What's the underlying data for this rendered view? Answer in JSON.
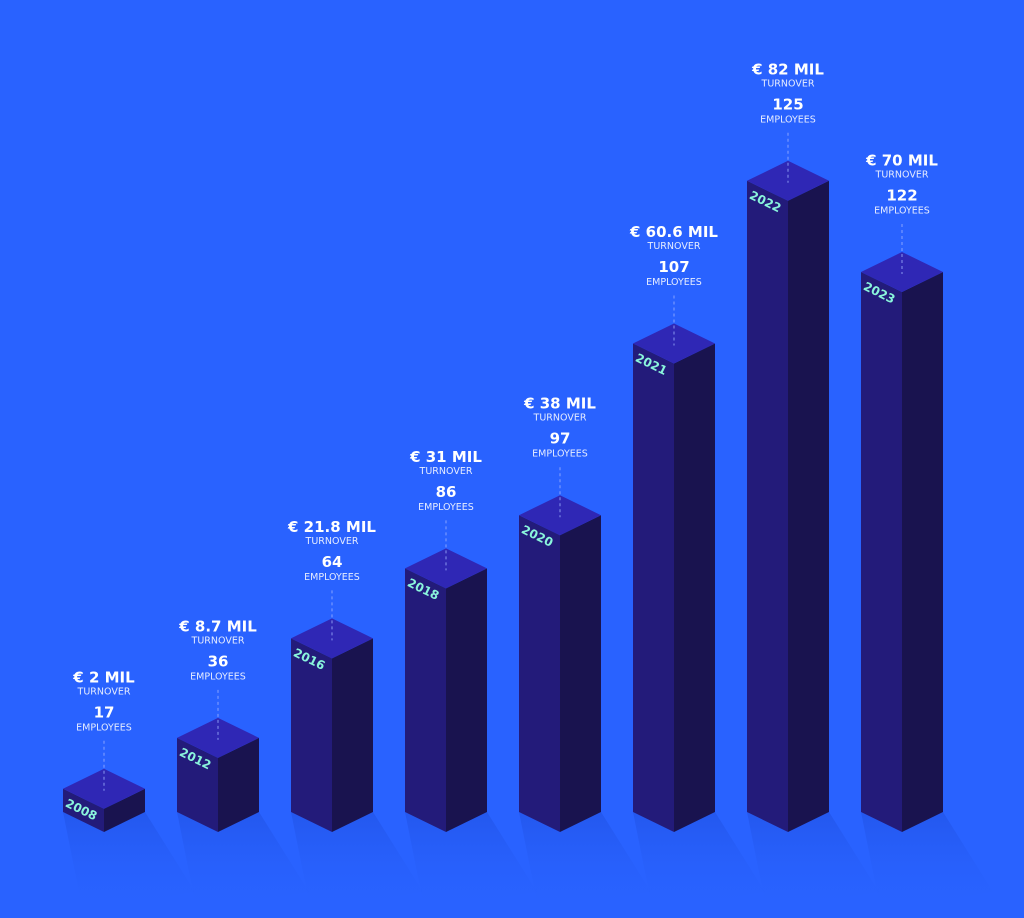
{
  "chart_data": {
    "type": "bar",
    "categories": [
      "2008",
      "2012",
      "2016",
      "2018",
      "2020",
      "2021",
      "2022",
      "2023"
    ],
    "series": [
      {
        "name": "TURNOVER",
        "color": "#231b7a",
        "values": [
          2,
          8.7,
          21.8,
          31,
          38,
          60.6,
          82,
          70
        ],
        "value_labels": [
          "€ 2 MIL",
          "€ 8.7 MIL",
          "€ 21.8 MIL",
          "€ 31 MIL",
          "€ 38 MIL",
          "€ 60.6 MIL",
          "€ 82 MIL",
          "€ 70 MIL"
        ]
      },
      {
        "name": "EMPLOYEES",
        "values": [
          17,
          36,
          64,
          86,
          97,
          107,
          125,
          122
        ]
      }
    ]
  }
}
